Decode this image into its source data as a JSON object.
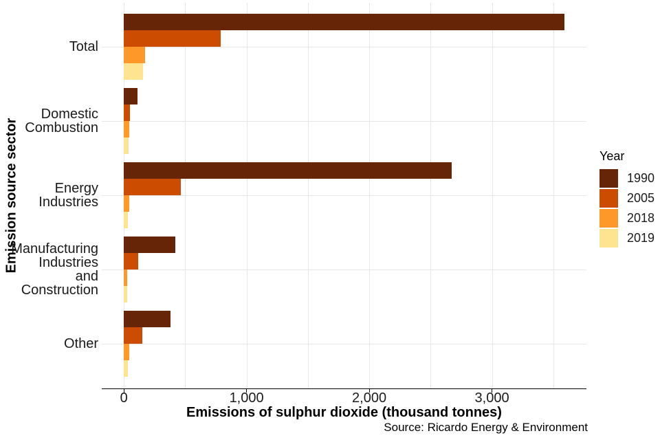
{
  "chart_data": {
    "type": "bar",
    "orientation": "horizontal",
    "xlabel": "Emissions of sulphur dioxide (thousand tonnes)",
    "ylabel": "Emission source sector",
    "caption": "Source: Ricardo Energy & Environment",
    "categories": [
      "Total",
      "Domestic Combustion",
      "Energy Industries",
      "Manufacturing Industries and Construction",
      "Other"
    ],
    "category_label_lines": [
      [
        "Total"
      ],
      [
        "Domestic",
        "Combustion"
      ],
      [
        "Energy",
        "Industries"
      ],
      [
        "Manufacturing",
        "Industries",
        "and",
        "Construction"
      ],
      [
        "Other"
      ]
    ],
    "series": [
      {
        "name": "1990",
        "color": "#662506",
        "values": [
          3590,
          110,
          2670,
          420,
          380
        ]
      },
      {
        "name": "2005",
        "color": "#CC4C02",
        "values": [
          790,
          50,
          465,
          118,
          148
        ]
      },
      {
        "name": "2018",
        "color": "#FE9929",
        "values": [
          175,
          45,
          43,
          30,
          43
        ]
      },
      {
        "name": "2019",
        "color": "#FEE391",
        "values": [
          155,
          40,
          34,
          26,
          34
        ]
      }
    ],
    "x_ticks": [
      {
        "value": 0,
        "label": "0"
      },
      {
        "value": 1000,
        "label": "1,000"
      },
      {
        "value": 2000,
        "label": "2,000"
      },
      {
        "value": 3000,
        "label": "3,000"
      }
    ],
    "x_gridlines": [
      0,
      500,
      1000,
      1500,
      2000,
      2500,
      3000,
      3500
    ],
    "xlim": [
      -180,
      3770
    ],
    "grid": true,
    "legend": {
      "title": "Year",
      "position": "right"
    },
    "colors": {
      "gridline": "#e6e6e6",
      "axis_line": "#000000",
      "text": "#1a1a1a"
    }
  }
}
